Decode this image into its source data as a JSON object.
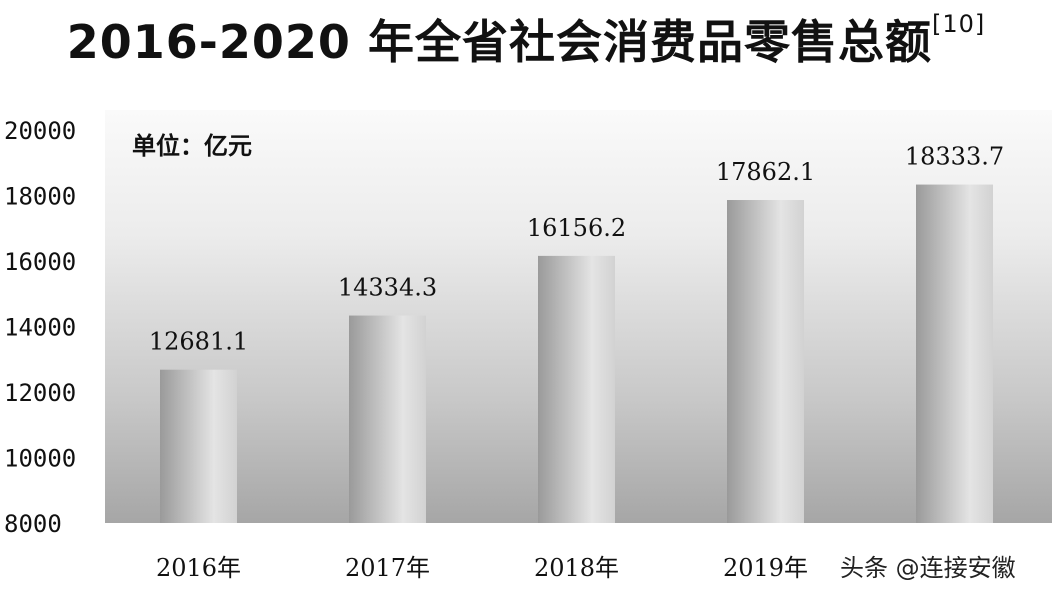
{
  "chart_data": {
    "type": "bar",
    "title": "2016-2020 年全省社会消费品零售总额",
    "title_ref": "[10]",
    "unit_label": "单位：亿元",
    "categories": [
      "2016年",
      "2017年",
      "2018年",
      "2019年",
      ""
    ],
    "values": [
      12681.1,
      14334.3,
      16156.2,
      17862.1,
      18333.7
    ],
    "data_labels": [
      "12681.1",
      "14334.3",
      "16156.2",
      "17862.1",
      "18333.7"
    ],
    "xlabel": "",
    "ylabel": "",
    "ylim": [
      8000,
      20000
    ],
    "yticks": [
      8000,
      10000,
      12000,
      14000,
      16000,
      18000,
      20000
    ],
    "grid": false,
    "legend": "none",
    "colors": {
      "bar_dark": "#9a9a9a",
      "bar_light": "#e4e4e4",
      "bg_top": "#fafafa",
      "bg_bottom": "#a6a6a6"
    }
  },
  "watermark": "头条 @连接安徽"
}
